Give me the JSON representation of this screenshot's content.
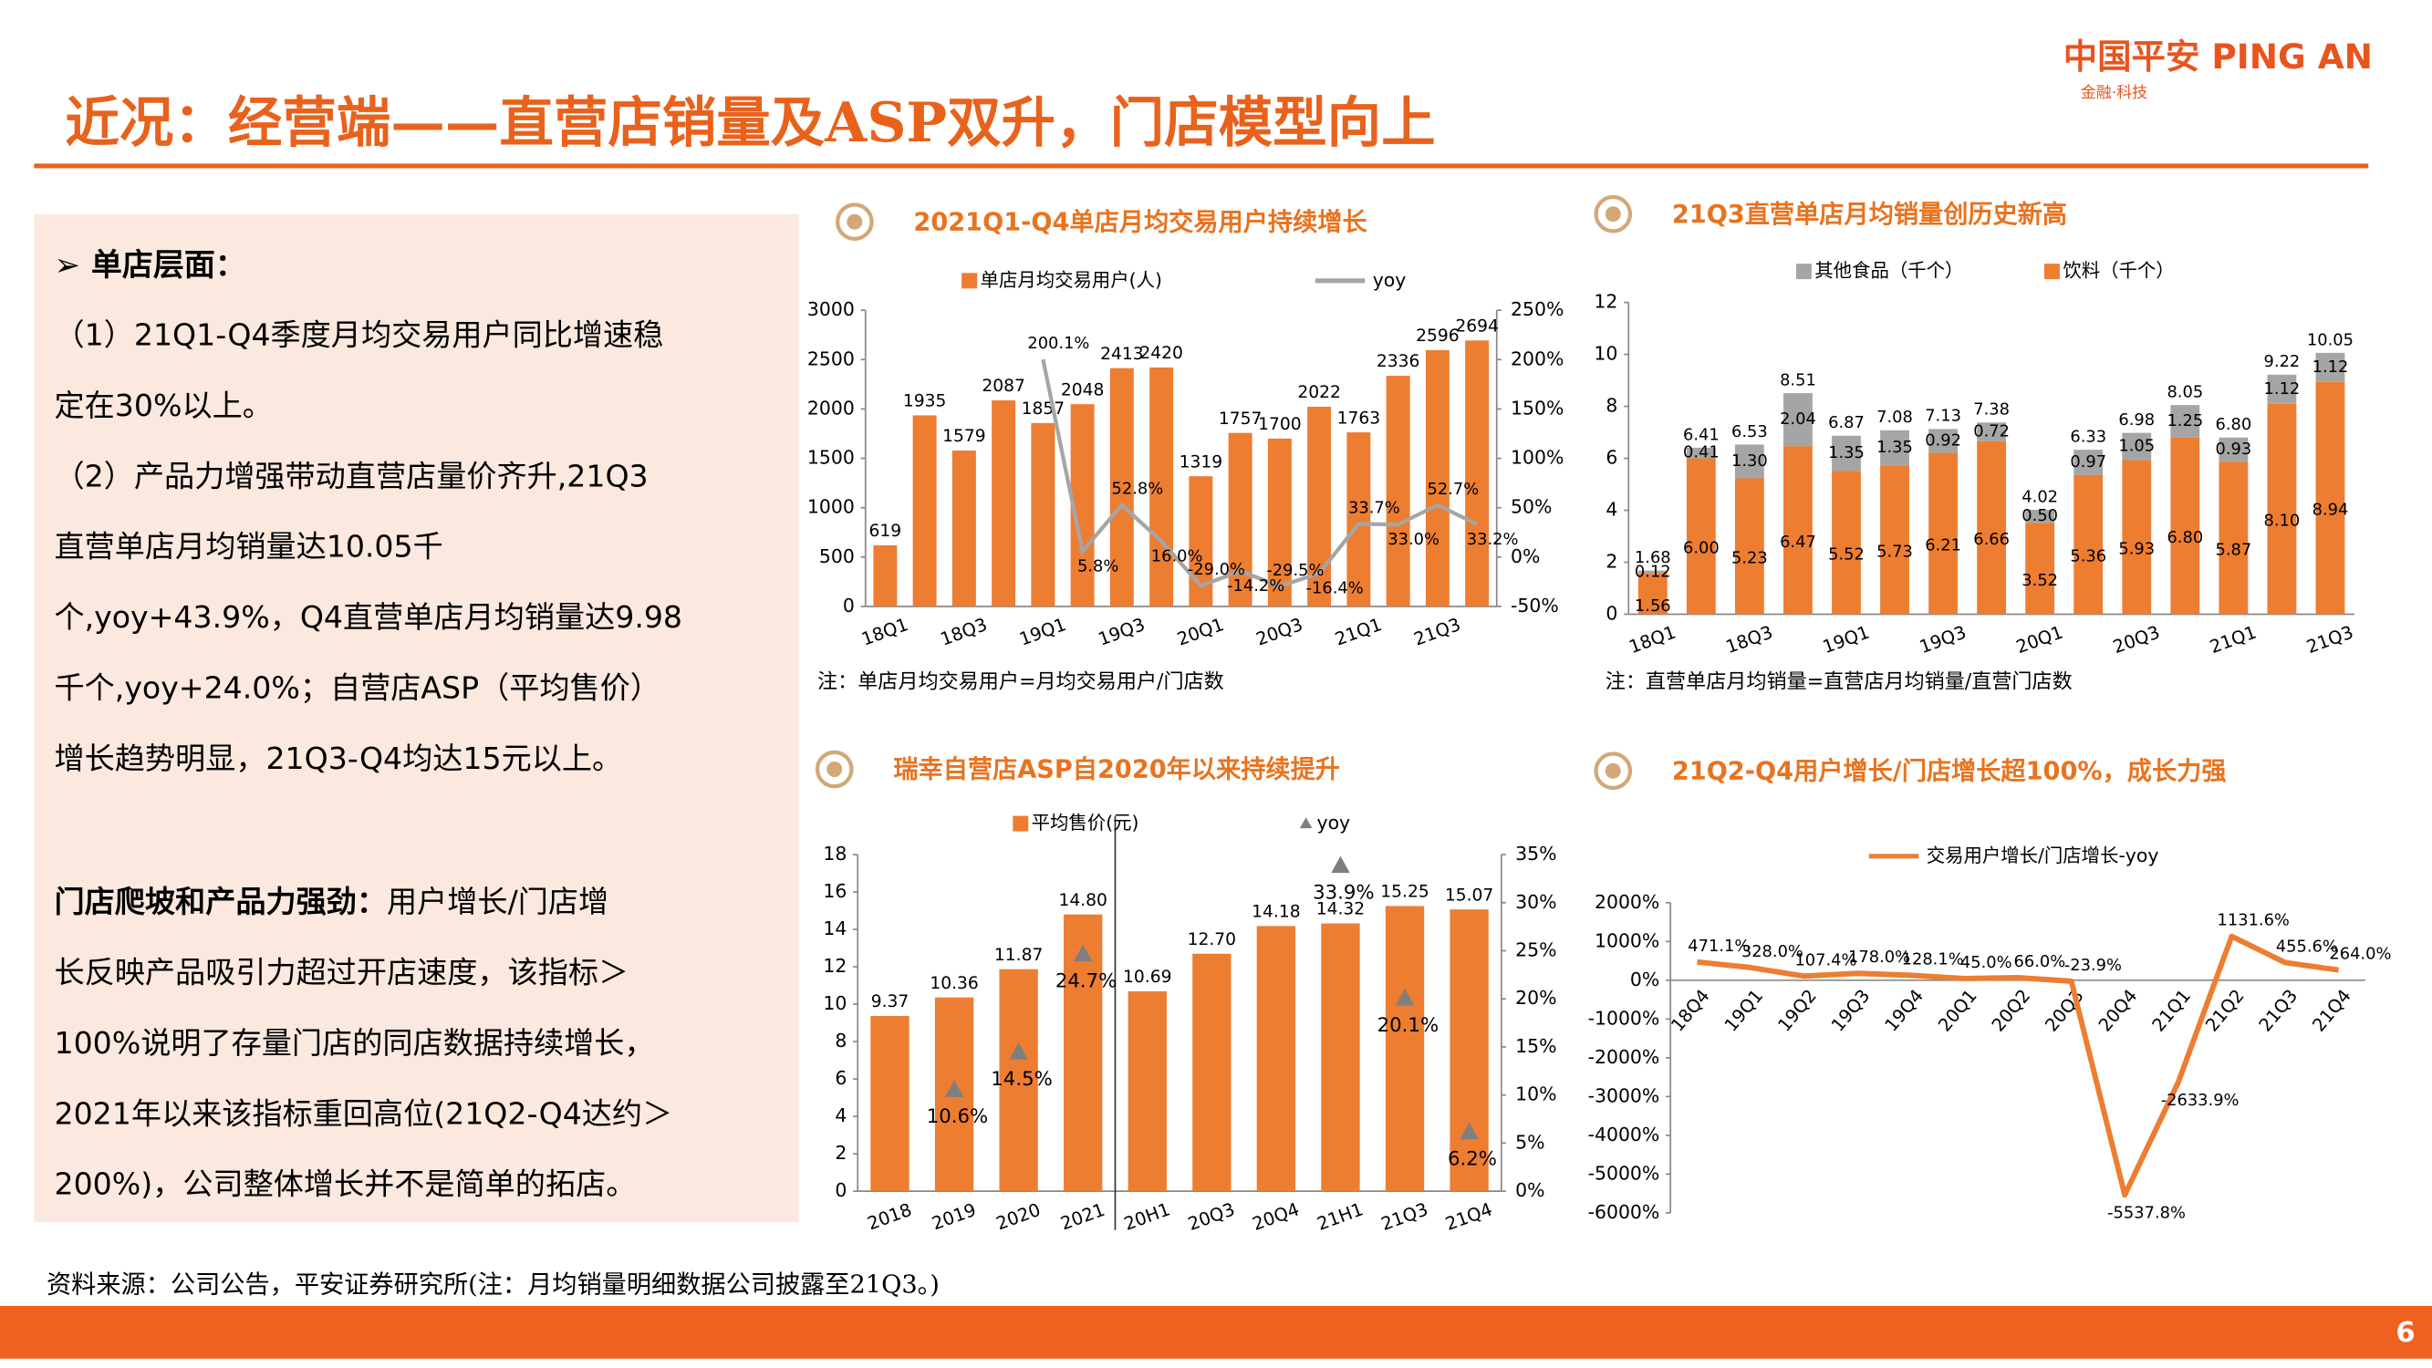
{
  "header": {
    "title": "近况：经营端——直营店销量及ASP双升，门店模型向上",
    "logo": "中国平安 PING AN",
    "logo_sub": "金融·科技"
  },
  "summary": {
    "heading": "➢  单店层面：",
    "lines1": [
      "（1）21Q1-Q4季度月均交易用户同比增速稳",
      "定在30%以上。",
      "（2）产品力增强带动直营店量价齐升,21Q3",
      "直营单店月均销量达10.05千",
      "个,yoy+43.9%，Q4直营单店月均销量达9.98",
      "千个,yoy+24.0%；自营店ASP（平均售价）",
      "增长趋势明显，21Q3-Q4均达15元以上。"
    ],
    "lead": "门店爬坡和产品力强劲：",
    "lead_rest": "用户增长/门店增",
    "lines2": [
      "长反映产品吸引力超过开店速度，该指标＞",
      "100%说明了存量门店的同店数据持续增长，",
      "2021年以来该指标重回高位(21Q2-Q4达约＞",
      "200%)，公司整体增长并不是简单的拓店。"
    ]
  },
  "source": "资料来源：公司公告，平安证券研究所(注：月均销量明细数据公司披露至21Q3。)",
  "page_number": "6",
  "chart_data": [
    {
      "type": "combo",
      "title": "2021Q1-Q4单店月均交易用户持续增长",
      "categories": [
        "18Q1",
        null,
        "18Q3",
        null,
        "19Q1",
        null,
        "19Q3",
        null,
        "20Q1",
        null,
        "20Q3",
        null,
        "21Q1",
        null,
        "21Q3",
        null
      ],
      "series": [
        {
          "name": "单店月均交易用户(人)",
          "color": "#ed7d31",
          "values": [
            619,
            1935,
            1579,
            2087,
            1857,
            2048,
            2413,
            2420,
            1319,
            1757,
            1700,
            2022,
            1763,
            2336,
            2596,
            2694
          ]
        },
        {
          "name": "yoy",
          "color": "#a5a5a5",
          "axis": "y2",
          "values": [
            null,
            null,
            null,
            null,
            200.1,
            5.8,
            52.8,
            16.0,
            -29.0,
            -14.2,
            -29.5,
            -16.4,
            33.7,
            33.0,
            52.7,
            33.2
          ],
          "value_labels": [
            null,
            null,
            null,
            null,
            "200.1%",
            "5.8%",
            "52.8%",
            "16.0%",
            "-29.0%",
            "-14.2%",
            "-29.5%",
            "-16.4%",
            "33.7%",
            "33.0%",
            "52.7%",
            "33.2%"
          ]
        }
      ],
      "ylim": [
        0,
        3000
      ],
      "yticks": [
        0,
        500,
        1000,
        1500,
        2000,
        2500,
        3000
      ],
      "y2lim": [
        -50,
        250
      ],
      "y2ticks": [
        {
          "value": -50,
          "label": "-50%"
        },
        {
          "value": 0,
          "label": "0%"
        },
        {
          "value": 50,
          "label": "50%"
        },
        {
          "value": 100,
          "label": "100%"
        },
        {
          "value": 150,
          "label": "150%"
        },
        {
          "value": 200,
          "label": "200%"
        },
        {
          "value": 250,
          "label": "250%"
        }
      ],
      "note": "注：单店月均交易用户=月均交易用户/门店数"
    },
    {
      "type": "bar",
      "stacked": true,
      "title": "21Q3直营单店月均销量创历史新高",
      "categories": [
        "18Q1",
        null,
        "18Q3",
        null,
        "19Q1",
        null,
        "19Q3",
        null,
        "20Q1",
        null,
        "20Q3",
        null,
        "21Q1",
        null,
        "21Q3"
      ],
      "series": [
        {
          "name": "其他食品（千个）",
          "color": "#a5a5a5",
          "values": [
            0.12,
            0.41,
            1.3,
            2.04,
            1.35,
            1.35,
            0.92,
            0.72,
            0.5,
            0.97,
            1.05,
            1.25,
            0.93,
            1.12,
            1.12
          ],
          "value_labels": [
            "0.12",
            "0.41",
            "1.30",
            "2.04",
            "1.35",
            "1.35",
            "0.92",
            "0.72",
            "0.50",
            "0.97",
            "1.05",
            "1.25",
            "0.93",
            "1.12",
            "1.12"
          ]
        },
        {
          "name": "饮料（千个）",
          "color": "#ed7d31",
          "values": [
            1.56,
            6.0,
            5.23,
            6.47,
            5.52,
            5.73,
            6.21,
            6.66,
            3.52,
            5.36,
            5.93,
            6.8,
            5.87,
            8.1,
            8.94
          ],
          "value_labels": [
            "1.56",
            "6.00",
            "5.23",
            "6.47",
            "5.52",
            "5.73",
            "6.21",
            "6.66",
            "3.52",
            "5.36",
            "5.93",
            "6.80",
            "5.87",
            "8.10",
            "8.94"
          ]
        }
      ],
      "totals": [
        1.68,
        6.41,
        6.53,
        8.51,
        6.87,
        7.08,
        7.13,
        7.38,
        4.02,
        6.33,
        6.98,
        8.05,
        6.8,
        9.22,
        10.05
      ],
      "total_labels": [
        "1.68",
        "6.41",
        "6.53",
        "8.51",
        "6.87",
        "7.08",
        "7.13",
        "7.38",
        "4.02",
        "6.33",
        "6.98",
        "8.05",
        "6.80",
        "9.22",
        "10.05"
      ],
      "ylim": [
        0,
        12
      ],
      "yticks": [
        0,
        2,
        4,
        6,
        8,
        10,
        12
      ],
      "note": "注：直营单店月均销量=直营店月均销量/直营门店数"
    },
    {
      "type": "combo",
      "title": "瑞幸自营店ASP自2020年以来持续提升",
      "categories": [
        "2018",
        "2019",
        "2020",
        "2021",
        "20H1",
        "20Q3",
        "20Q4",
        "21H1",
        "21Q3",
        "21Q4"
      ],
      "series": [
        {
          "name": "平均售价(元)",
          "color": "#ed7d31",
          "values": [
            9.37,
            10.36,
            11.87,
            14.8,
            10.69,
            12.7,
            14.18,
            14.32,
            15.25,
            15.07
          ],
          "value_labels": [
            "9.37",
            "10.36",
            "11.87",
            "14.80",
            "10.69",
            "12.70",
            "14.18",
            "14.32",
            "15.25",
            "15.07"
          ]
        },
        {
          "name": "yoy",
          "color": "#7f7f7f",
          "axis": "y2",
          "marker": "triangle",
          "values": [
            null,
            10.6,
            14.5,
            24.7,
            null,
            null,
            null,
            33.9,
            20.1,
            6.2
          ],
          "value_labels": [
            null,
            "10.6%",
            "14.5%",
            "24.7%",
            null,
            null,
            null,
            "33.9%",
            "20.1%",
            "6.2%"
          ]
        }
      ],
      "ylim": [
        0,
        18
      ],
      "yticks": [
        0,
        2,
        4,
        6,
        8,
        10,
        12,
        14,
        16,
        18
      ],
      "y2lim": [
        0,
        35
      ],
      "y2ticks": [
        {
          "value": 0,
          "label": "0%"
        },
        {
          "value": 5,
          "label": "5%"
        },
        {
          "value": 10,
          "label": "10%"
        },
        {
          "value": 15,
          "label": "15%"
        },
        {
          "value": 20,
          "label": "20%"
        },
        {
          "value": 25,
          "label": "25%"
        },
        {
          "value": 30,
          "label": "30%"
        },
        {
          "value": 35,
          "label": "35%"
        }
      ]
    },
    {
      "type": "line",
      "title": "21Q2-Q4用户增长/门店增长超100%，成长力强",
      "categories": [
        "18Q4",
        "19Q1",
        "19Q2",
        "19Q3",
        "19Q4",
        "20Q1",
        "20Q2",
        "20Q3",
        "20Q4",
        "21Q1",
        "21Q2",
        "21Q3",
        "21Q4"
      ],
      "series": [
        {
          "name": "交易用户增长/门店增长-yoy",
          "color": "#ed7d31",
          "values": [
            471.1,
            328.0,
            107.4,
            178.0,
            128.1,
            45.0,
            66.0,
            -23.9,
            -5537.8,
            -2633.9,
            1131.6,
            455.6,
            264.0
          ],
          "value_labels": [
            "471.1%",
            "328.0%",
            "107.4%",
            "178.0%",
            "128.1%",
            "45.0%",
            "66.0%",
            "-23.9%",
            "-5537.8%",
            "-2633.9%",
            "1131.6%",
            "455.6%",
            "264.0%"
          ]
        }
      ],
      "ylim": [
        -6000,
        2000
      ],
      "yticks": [
        {
          "value": -6000,
          "label": "-6000%"
        },
        {
          "value": -5000,
          "label": "-5000%"
        },
        {
          "value": -4000,
          "label": "-4000%"
        },
        {
          "value": -3000,
          "label": "-3000%"
        },
        {
          "value": -2000,
          "label": "-2000%"
        },
        {
          "value": -1000,
          "label": "-1000%"
        },
        {
          "value": 0,
          "label": "0%"
        },
        {
          "value": 1000,
          "label": "1000%"
        },
        {
          "value": 2000,
          "label": "2000%"
        }
      ]
    }
  ]
}
